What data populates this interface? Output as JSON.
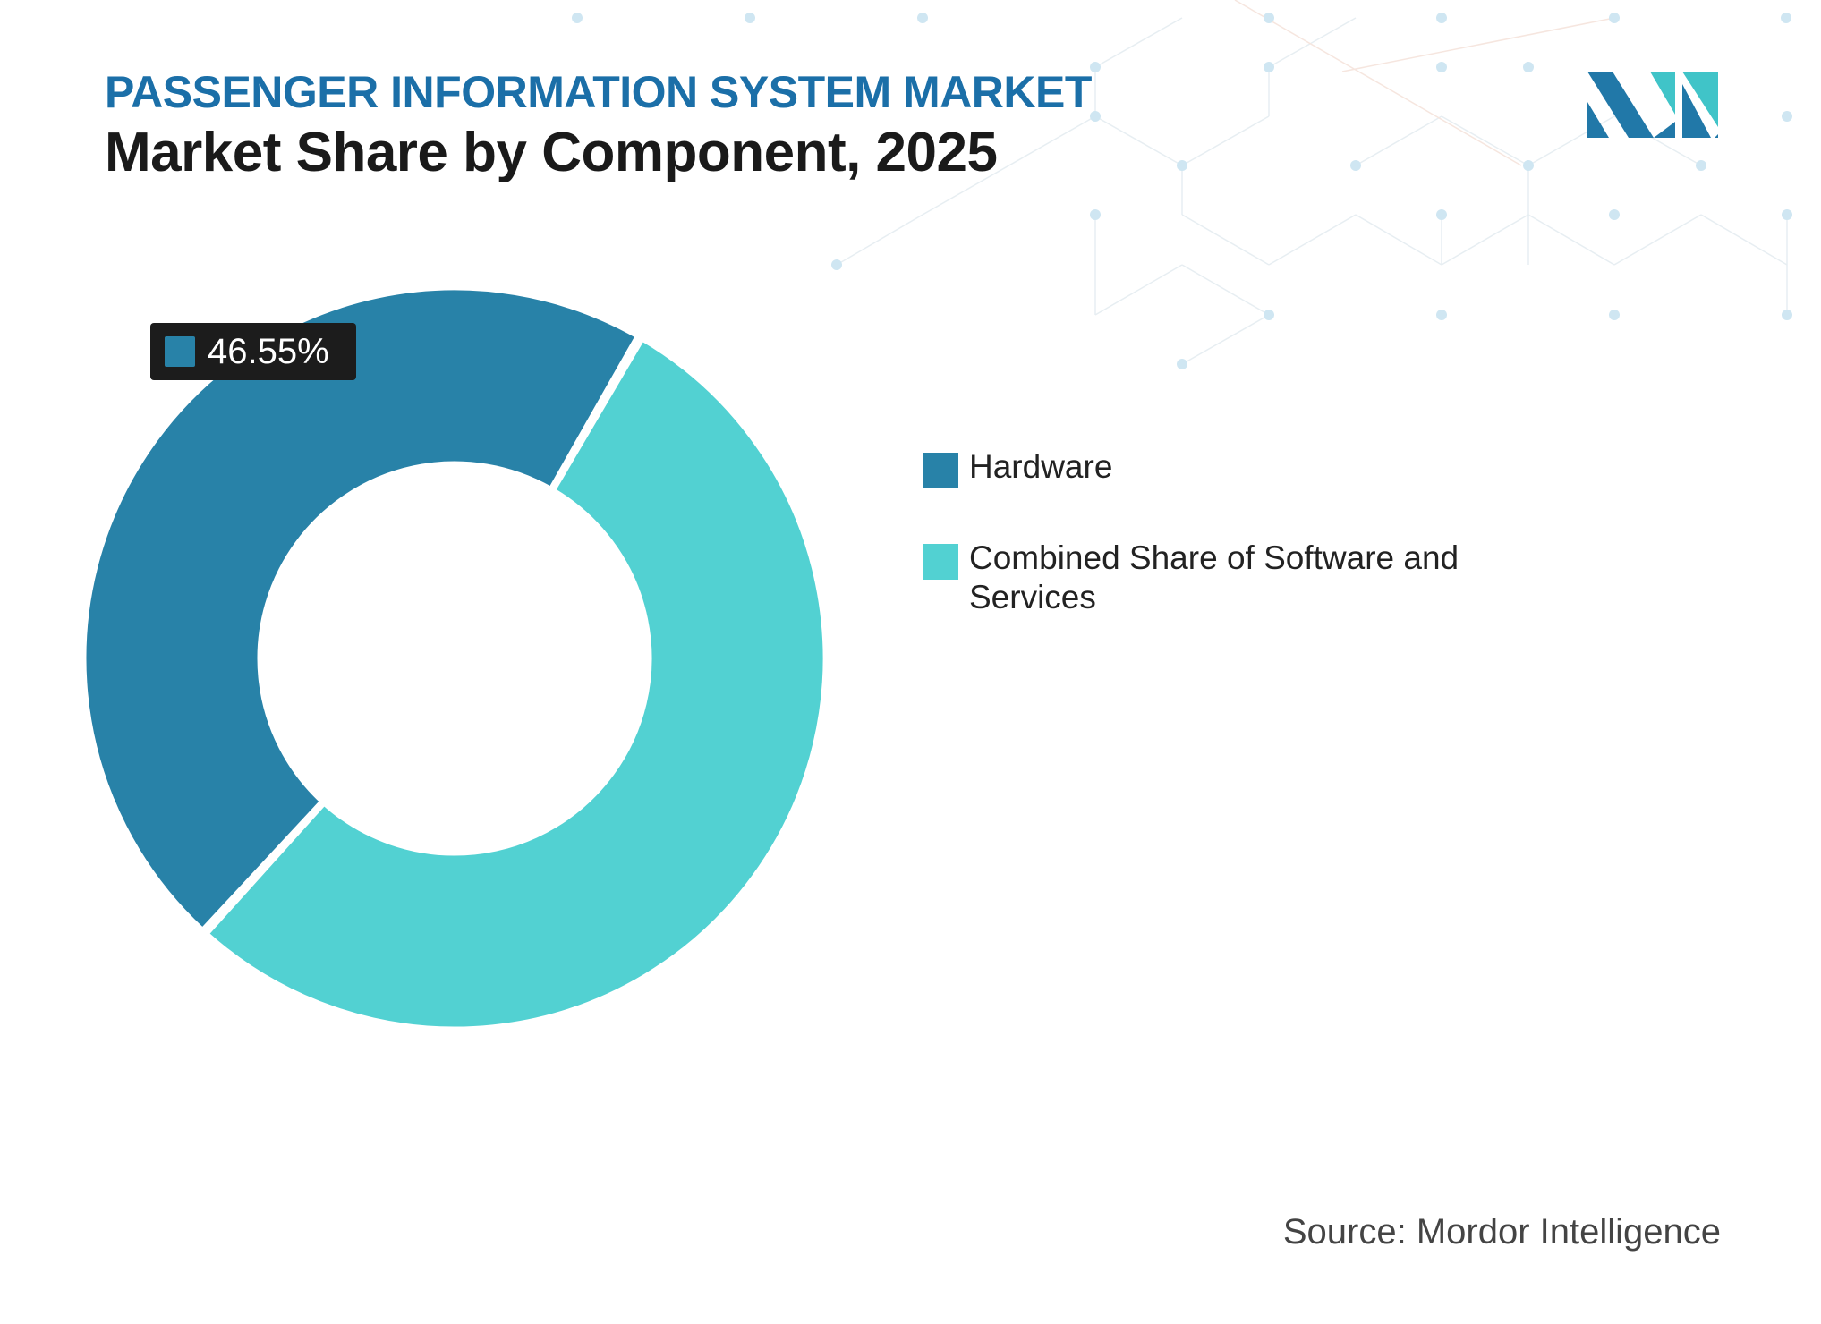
{
  "header": {
    "supertitle": "PASSENGER INFORMATION SYSTEM MARKET",
    "title": "Market Share by Component, 2025"
  },
  "chart_data": {
    "type": "pie",
    "variant": "donut",
    "categories": [
      "Hardware",
      "Combined Share of Software and Services"
    ],
    "values": [
      46.55,
      53.45
    ],
    "colors": [
      "#2882a8",
      "#52d1d2"
    ],
    "data_labels": [
      {
        "category": "Hardware",
        "text": "46.55%"
      }
    ],
    "legend_position": "right"
  },
  "source": "Source: Mordor Intelligence",
  "logo": {
    "icon": "mordor-intelligence-logo-icon",
    "colors": [
      "#2178a8",
      "#40c4c8"
    ]
  },
  "colors": {
    "supertitle": "#1b6fa8",
    "title": "#1a1a1a",
    "label_bg": "#1c1c1c",
    "pattern_dot": "#cfe6f2"
  }
}
